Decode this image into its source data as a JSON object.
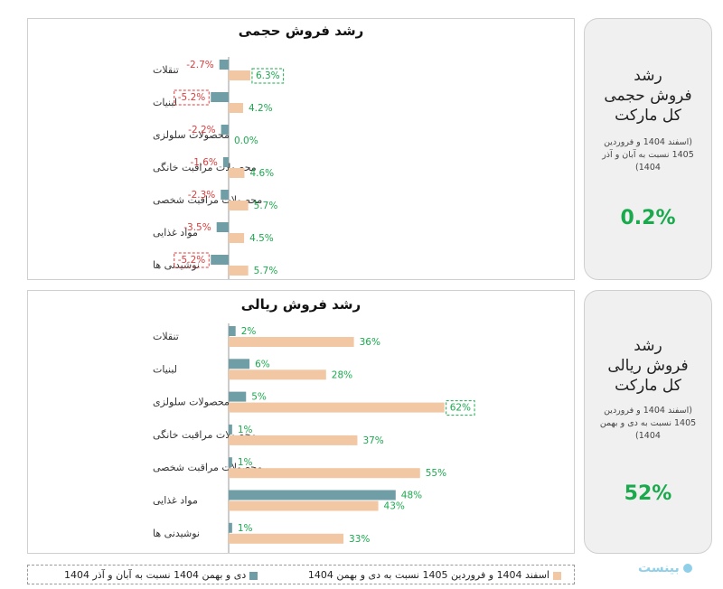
{
  "colors": {
    "series_prev": "#6f9ea6",
    "series_curr": "#f1c7a4",
    "negative": "#e03a3a",
    "positive": "#1aaa4d",
    "value_big": "#1aaa4d"
  },
  "volume_card": {
    "title_line1": "رشد",
    "title_line2": "فروش حجمی",
    "title_line3": "کل مارکت",
    "subtitle": "(اسفند 1404 و فروردین 1405 نسبت به آبان و آذر 1404)",
    "value": "0.2%"
  },
  "rial_card": {
    "title_line1": "رشد",
    "title_line2": "فروش ریالی",
    "title_line3": "کل مارکت",
    "subtitle": "(اسفند 1404 و فروردین 1405 نسبت به دی و بهمن 1404)",
    "value": "52%"
  },
  "legend": {
    "item1": "اسفند 1404 و فروردین 1405 نسبت به دی و بهمن 1404",
    "item2": "دی و بهمن 1404 نسبت به آبان و آذر 1404"
  },
  "logo_text": "بینست",
  "chart_data": [
    {
      "type": "bar",
      "title": "رشد فروش حجمی",
      "categories": [
        "تنقلات",
        "لبنیات",
        "محصولات سلولزی",
        "محصولات مراقبت خانگی",
        "محصولات مراقبت شخصی",
        "مواد غذایی",
        "نوشیدنی ها"
      ],
      "series": [
        {
          "values": [
            -2.7,
            -5.2,
            -2.2,
            -1.6,
            -2.3,
            -3.5,
            -5.2
          ],
          "labels": [
            "-2.7%",
            "-5.2%",
            "-2.2%",
            "-1.6%",
            "-2.3%",
            "-3.5%",
            "-5.2%"
          ]
        },
        {
          "values": [
            6.3,
            4.2,
            0.0,
            4.6,
            5.7,
            4.5,
            5.7
          ],
          "labels": [
            "6.3%",
            "4.2%",
            "0.0%",
            "4.6%",
            "5.7%",
            "4.5%",
            "5.7%"
          ]
        }
      ],
      "highlighted": [
        [
          0,
          1
        ],
        [
          0,
          6
        ],
        [
          1,
          0
        ]
      ],
      "orientation": "horizontal"
    },
    {
      "type": "bar",
      "title": "رشد فروش ریالی",
      "categories": [
        "تنقلات",
        "لبنیات",
        "محصولات سلولزی",
        "محصولات مراقبت خانگی",
        "محصولات مراقبت شخصی",
        "مواد غذایی",
        "نوشیدنی ها"
      ],
      "series": [
        {
          "values": [
            2,
            6,
            5,
            1,
            1,
            48,
            1
          ],
          "labels": [
            "2%",
            "6%",
            "5%",
            "1%",
            "1%",
            "48%",
            "1%"
          ]
        },
        {
          "values": [
            36,
            28,
            62,
            37,
            55,
            43,
            33
          ],
          "labels": [
            "36%",
            "28%",
            "62%",
            "37%",
            "55%",
            "43%",
            "33%"
          ]
        }
      ],
      "highlighted": [
        [
          1,
          2
        ]
      ],
      "orientation": "horizontal"
    }
  ]
}
